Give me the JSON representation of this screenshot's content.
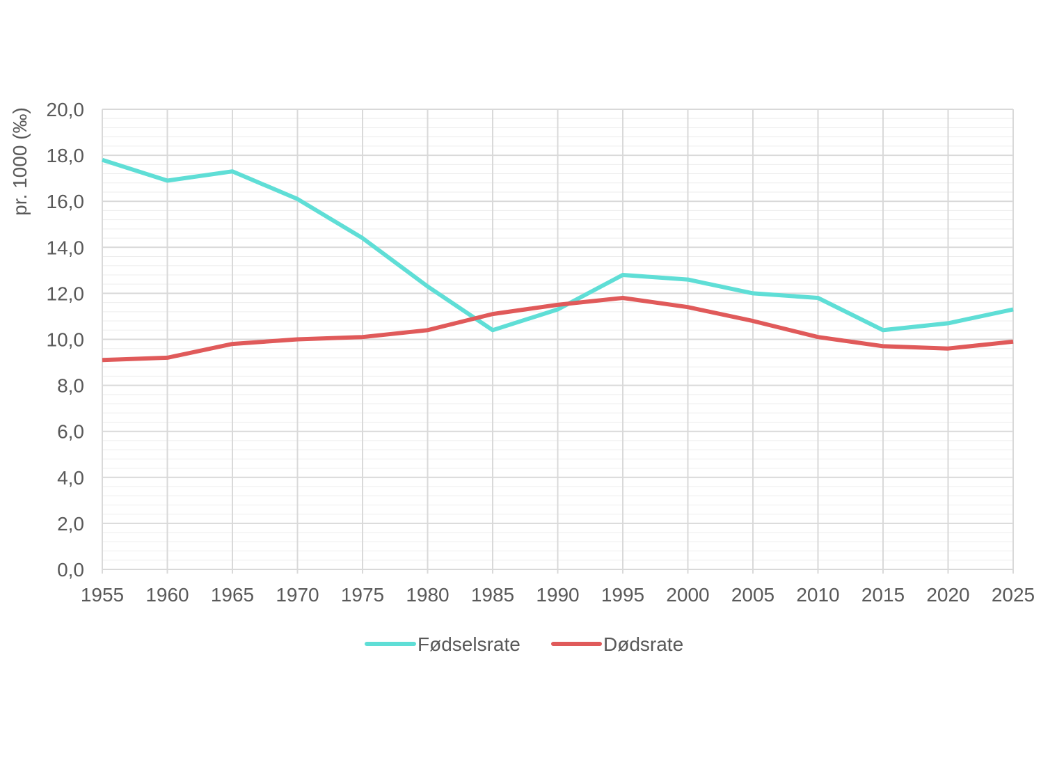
{
  "chart_data": {
    "type": "line",
    "title": "",
    "xlabel": "",
    "ylabel": "pr. 1000 (‰)",
    "x": [
      1955,
      1960,
      1965,
      1970,
      1975,
      1980,
      1985,
      1990,
      1995,
      2000,
      2005,
      2010,
      2015,
      2020,
      2025
    ],
    "x_tick_labels": [
      "1955",
      "1960",
      "1965",
      "1970",
      "1975",
      "1980",
      "1985",
      "1990",
      "1995",
      "2000",
      "2005",
      "2010",
      "2015",
      "2020",
      "2025"
    ],
    "ylim": [
      0,
      20
    ],
    "y_ticks": [
      0,
      2,
      4,
      6,
      8,
      10,
      12,
      14,
      16,
      18,
      20
    ],
    "y_tick_labels": [
      "0,0",
      "2,0",
      "4,0",
      "6,0",
      "8,0",
      "10,0",
      "12,0",
      "14,0",
      "16,0",
      "18,0",
      "20,0"
    ],
    "grid": true,
    "minor_grid": true,
    "legend_position": "bottom-center",
    "series": [
      {
        "name": "Fødselsrate",
        "color": "#5fded6",
        "values": [
          17.8,
          16.9,
          17.3,
          16.1,
          14.4,
          12.3,
          10.4,
          11.3,
          12.8,
          12.6,
          12.0,
          11.8,
          10.4,
          10.7,
          11.3
        ]
      },
      {
        "name": "Dødsrate",
        "color": "#e05a5a",
        "values": [
          9.1,
          9.2,
          9.8,
          10.0,
          10.1,
          10.4,
          11.1,
          11.5,
          11.8,
          11.4,
          10.8,
          10.1,
          9.7,
          9.6,
          9.9
        ]
      }
    ]
  }
}
